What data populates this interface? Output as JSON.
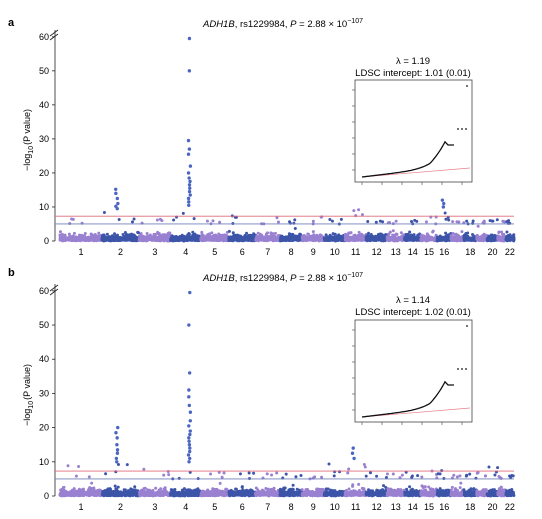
{
  "chart_data": [
    {
      "type": "scatter",
      "panel_label": "a",
      "title_gene": "ADH1B",
      "title_rest": ", rs1229984, ",
      "title_p": "P",
      "title_eq": " = 2.88 × 10",
      "title_exp": "−107",
      "ylabel_prefix": "−log",
      "ylabel_sub": "10",
      "ylabel_suffix": "(P value)",
      "yticks": [
        "0",
        "10",
        "20",
        "30",
        "40",
        "50",
        "60"
      ],
      "ylim": [
        0,
        62
      ],
      "xticks": [
        "1",
        "2",
        "3",
        "4",
        "5",
        "6",
        "7",
        "8",
        "9",
        "10",
        "11",
        "12",
        "13",
        "14",
        "15",
        "16",
        "18",
        "20",
        "22"
      ],
      "thresholds": {
        "genome_wide": 7.3,
        "suggestive": 5
      },
      "chromosomes": [
        {
          "chr": "1",
          "peak": 6.5,
          "hits": []
        },
        {
          "chr": "2",
          "peak": 8.5,
          "hits": [
            15.2,
            14.0,
            12.5,
            11.0,
            10.2,
            9.5
          ]
        },
        {
          "chr": "3",
          "peak": 7.5,
          "hits": []
        },
        {
          "chr": "4",
          "peak": 8.5,
          "hits": [
            59.5,
            50.0,
            29.5,
            27.0,
            25.5,
            22.0,
            20.0,
            18.5,
            17.5,
            16.5,
            15.5,
            14.5,
            13.5,
            12.5,
            11.5,
            10.5
          ]
        },
        {
          "chr": "5",
          "peak": 6.2,
          "hits": []
        },
        {
          "chr": "6",
          "peak": 7.8,
          "hits": []
        },
        {
          "chr": "7",
          "peak": 8.0,
          "hits": []
        },
        {
          "chr": "8",
          "peak": 7.2,
          "hits": []
        },
        {
          "chr": "9",
          "peak": 9.0,
          "hits": []
        },
        {
          "chr": "10",
          "peak": 6.5,
          "hits": []
        },
        {
          "chr": "11",
          "peak": 9.5,
          "hits": []
        },
        {
          "chr": "12",
          "peak": 6.0,
          "hits": []
        },
        {
          "chr": "13",
          "peak": 6.0,
          "hits": []
        },
        {
          "chr": "14",
          "peak": 6.3,
          "hits": []
        },
        {
          "chr": "15",
          "peak": 8.5,
          "hits": []
        },
        {
          "chr": "16",
          "peak": 9.0,
          "hits": [
            12.0,
            11.0,
            10.0
          ]
        },
        {
          "chr": "17",
          "peak": 6.0,
          "hits": []
        },
        {
          "chr": "18",
          "peak": 6.0,
          "hits": []
        },
        {
          "chr": "19",
          "peak": 6.0,
          "hits": []
        },
        {
          "chr": "20",
          "peak": 6.3,
          "hits": []
        },
        {
          "chr": "21",
          "peak": 5.8,
          "hits": []
        },
        {
          "chr": "22",
          "peak": 6.0,
          "hits": []
        }
      ],
      "inset": {
        "lambda_label": "λ = 1.19",
        "intercept_label": "LDSC intercept: 1.01 (0.01)"
      }
    },
    {
      "type": "scatter",
      "panel_label": "b",
      "title_gene": "ADH1B",
      "title_rest": ", rs1229984, ",
      "title_p": "P",
      "title_eq": " = 2.88 × 10",
      "title_exp": "−107",
      "ylabel_prefix": "−log",
      "ylabel_sub": "10",
      "ylabel_suffix": "(P value)",
      "yticks": [
        "0",
        "10",
        "20",
        "30",
        "40",
        "50",
        "60"
      ],
      "ylim": [
        0,
        62
      ],
      "xticks": [
        "1",
        "2",
        "3",
        "4",
        "5",
        "6",
        "7",
        "8",
        "9",
        "10",
        "11",
        "12",
        "13",
        "14",
        "15",
        "16",
        "18",
        "20",
        "22"
      ],
      "thresholds": {
        "genome_wide": 7.3,
        "suggestive": 5
      },
      "chromosomes": [
        {
          "chr": "1",
          "peak": 9.0,
          "hits": []
        },
        {
          "chr": "2",
          "peak": 9.5,
          "hits": [
            20.0,
            18.5,
            17.0,
            15.0,
            13.5,
            12.5,
            11.0,
            10.0
          ]
        },
        {
          "chr": "3",
          "peak": 8.0,
          "hits": []
        },
        {
          "chr": "4",
          "peak": 9.0,
          "hits": [
            59.5,
            50.0,
            36.0,
            31.0,
            29.0,
            26.5,
            24.5,
            22.0,
            20.5,
            19.0,
            18.0,
            17.0,
            16.0,
            15.0,
            14.0,
            13.0,
            12.0,
            11.0,
            10.0
          ]
        },
        {
          "chr": "5",
          "peak": 7.0,
          "hits": []
        },
        {
          "chr": "6",
          "peak": 7.0,
          "hits": []
        },
        {
          "chr": "7",
          "peak": 7.5,
          "hits": []
        },
        {
          "chr": "8",
          "peak": 7.0,
          "hits": []
        },
        {
          "chr": "9",
          "peak": 7.5,
          "hits": []
        },
        {
          "chr": "10",
          "peak": 9.5,
          "hits": []
        },
        {
          "chr": "11",
          "peak": 9.5,
          "hits": [
            14.0,
            12.5,
            11.0
          ]
        },
        {
          "chr": "12",
          "peak": 7.0,
          "hits": []
        },
        {
          "chr": "13",
          "peak": 7.0,
          "hits": []
        },
        {
          "chr": "14",
          "peak": 7.0,
          "hits": []
        },
        {
          "chr": "15",
          "peak": 7.5,
          "hits": []
        },
        {
          "chr": "16",
          "peak": 7.5,
          "hits": []
        },
        {
          "chr": "17",
          "peak": 6.5,
          "hits": []
        },
        {
          "chr": "18",
          "peak": 6.5,
          "hits": []
        },
        {
          "chr": "19",
          "peak": 7.0,
          "hits": []
        },
        {
          "chr": "20",
          "peak": 9.0,
          "hits": []
        },
        {
          "chr": "21",
          "peak": 6.0,
          "hits": []
        },
        {
          "chr": "22",
          "peak": 6.5,
          "hits": []
        }
      ],
      "inset": {
        "lambda_label": "λ = 1.14",
        "intercept_label": "LDSC intercept: 1.02 (0.01)"
      }
    }
  ],
  "colors": {
    "dark": "#3d55a8",
    "light": "#9a80d0",
    "hit": "#4a66c2",
    "threshold_red": "#e06b78",
    "threshold_blue": "#6f7fb8"
  }
}
